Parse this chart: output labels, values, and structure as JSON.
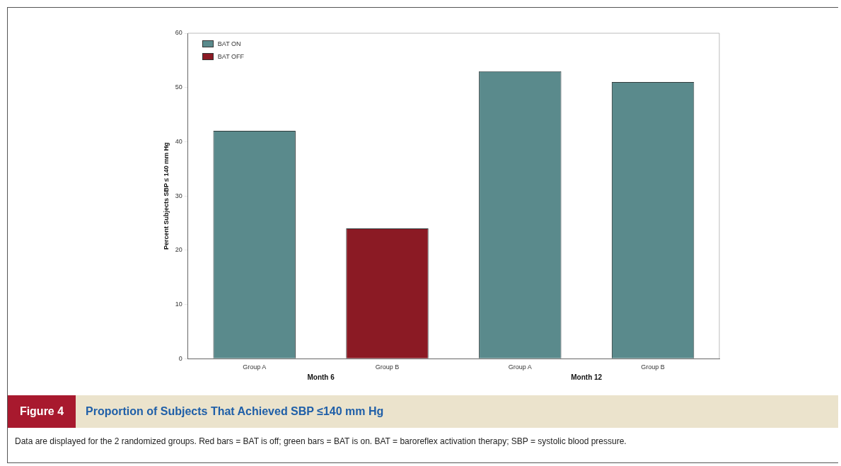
{
  "chart_data": {
    "type": "bar",
    "title": "Proportion of Subjects That Achieved SBP ≤140 mm Hg",
    "ylabel": "Percent Subjects SBP ≤ 140 mm Hg",
    "categories": [
      "Group A",
      "Group B",
      "Group A",
      "Group B"
    ],
    "series": [
      {
        "name": "BAT ON",
        "color": "#5a8a8c",
        "values": [
          42,
          null,
          53,
          51
        ]
      },
      {
        "name": "BAT OFF",
        "color": "#8b1a24",
        "values": [
          null,
          24,
          null,
          null
        ]
      }
    ],
    "ylim": [
      0,
      60
    ],
    "yticks": [
      0,
      10,
      20,
      30,
      40,
      50,
      60
    ],
    "grid": false,
    "legend": "top left",
    "annotations": [
      "Month 6",
      "Month 12",
      "Figure 4",
      "Data are displayed for the 2 randomized groups. Red bars = BAT is off; green bars = BAT is on. BAT = baroreflex activation therapy; SBP = systolic blood pressure."
    ]
  }
}
